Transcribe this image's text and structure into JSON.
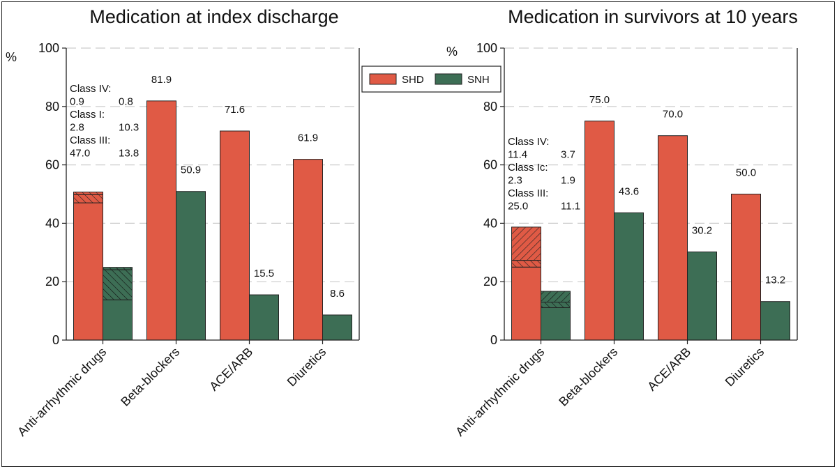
{
  "colors": {
    "shd": "#e05a45",
    "snh": "#3d6e55",
    "grid": "#cccccc",
    "axis": "#222222"
  },
  "legend": {
    "items": [
      {
        "label": "SHD",
        "color": "#e05a45"
      },
      {
        "label": "SNH",
        "color": "#3d6e55"
      }
    ]
  },
  "chart_data": [
    {
      "type": "bar",
      "title": "Medication at index discharge",
      "ylabel": "%",
      "ylim": [
        0,
        100
      ],
      "yticks": [
        "0",
        "20",
        "40",
        "60",
        "80",
        "100"
      ],
      "grid": true,
      "categories": [
        "Anti-arrhythmic drugs",
        "Beta-blockers",
        "ACE/ARB",
        "Diuretics"
      ],
      "series": [
        {
          "name": "SHD",
          "values": [
            50.7,
            81.9,
            71.6,
            61.9
          ],
          "labels": [
            "",
            "81.9",
            "71.6",
            "61.9"
          ]
        },
        {
          "name": "SNH",
          "values": [
            24.9,
            50.9,
            15.5,
            8.6
          ],
          "labels": [
            "",
            "50.9",
            "15.5",
            "8.6"
          ]
        }
      ],
      "stack_segments": {
        "SHD": [
          {
            "class": "Class III",
            "value": 47.0
          },
          {
            "class": "Class I",
            "value": 2.8
          },
          {
            "class": "Class IV",
            "value": 0.9
          }
        ],
        "SNH": [
          {
            "class": "Class III",
            "value": 13.8
          },
          {
            "class": "Class I",
            "value": 10.3
          },
          {
            "class": "Class IV",
            "value": 0.8
          }
        ]
      },
      "annotation_lines": [
        {
          "left": "Class IV:",
          "right": ""
        },
        {
          "left": "0.9",
          "right": "0.8"
        },
        {
          "left": "Class I:",
          "right": ""
        },
        {
          "left": "2.8",
          "right": "10.3"
        },
        {
          "left": "Class III:",
          "right": ""
        },
        {
          "left": "47.0",
          "right": "13.8"
        }
      ]
    },
    {
      "type": "bar",
      "title": "Medication in survivors at 10 years",
      "ylabel": "%",
      "ylim": [
        0,
        100
      ],
      "yticks": [
        "0",
        "20",
        "40",
        "60",
        "80",
        "100"
      ],
      "grid": true,
      "categories": [
        "Anti-arrhythmic drugs",
        "Beta-blockers",
        "ACE/ARB",
        "Diuretics"
      ],
      "series": [
        {
          "name": "SHD",
          "values": [
            38.7,
            75.0,
            70.0,
            50.0
          ],
          "labels": [
            "",
            "75.0",
            "70.0",
            "50.0"
          ]
        },
        {
          "name": "SNH",
          "values": [
            16.7,
            43.6,
            30.2,
            13.2
          ],
          "labels": [
            "",
            "43.6",
            "30.2",
            "13.2"
          ]
        }
      ],
      "stack_segments": {
        "SHD": [
          {
            "class": "Class III",
            "value": 25.0
          },
          {
            "class": "Class Ic",
            "value": 2.3
          },
          {
            "class": "Class IV",
            "value": 11.4
          }
        ],
        "SNH": [
          {
            "class": "Class III",
            "value": 11.1
          },
          {
            "class": "Class Ic",
            "value": 1.9
          },
          {
            "class": "Class IV",
            "value": 3.7
          }
        ]
      },
      "annotation_lines": [
        {
          "left": "Class IV:",
          "right": ""
        },
        {
          "left": "11.4",
          "right": "3.7"
        },
        {
          "left": "Class Ic:",
          "right": ""
        },
        {
          "left": "2.3",
          "right": "1.9"
        },
        {
          "left": "Class III:",
          "right": ""
        },
        {
          "left": "25.0",
          "right": "11.1"
        }
      ]
    }
  ]
}
